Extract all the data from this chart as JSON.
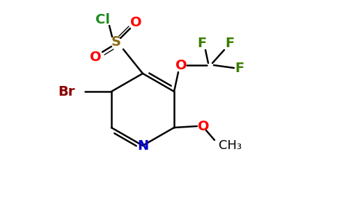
{
  "background_color": "#ffffff",
  "figsize": [
    4.84,
    3.0
  ],
  "dpi": 100,
  "colors": {
    "bond": "#000000",
    "N": "#0000cc",
    "Br": "#8b0000",
    "S": "#8b6914",
    "Cl": "#228b22",
    "O": "#ff0000",
    "F": "#3a7d00",
    "C": "#000000"
  },
  "lw": 1.8,
  "fontsize": 14
}
